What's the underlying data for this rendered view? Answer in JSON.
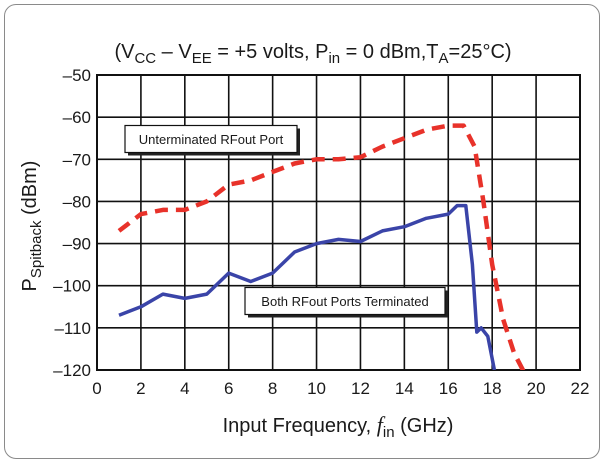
{
  "chart_data": {
    "type": "line",
    "title_parts": [
      {
        "t": "(V",
        "s": "n"
      },
      {
        "t": "CC",
        "s": "sub"
      },
      {
        "t": " – V",
        "s": "n"
      },
      {
        "t": "EE",
        "s": "sub"
      },
      {
        "t": " = +5 volts, P",
        "s": "n"
      },
      {
        "t": "in",
        "s": "sub"
      },
      {
        "t": " = 0 dBm,T",
        "s": "n"
      },
      {
        "t": "A",
        "s": "sub"
      },
      {
        "t": "=25°C)",
        "s": "n"
      }
    ],
    "xlabel_parts": [
      {
        "t": "Input Frequency, ",
        "s": "n"
      },
      {
        "t": "f",
        "s": "it"
      },
      {
        "t": "in",
        "s": "sub"
      },
      {
        "t": " (GHz)",
        "s": "n"
      }
    ],
    "ylabel_parts": [
      {
        "t": "P",
        "s": "n"
      },
      {
        "t": "Spitback",
        "s": "sub"
      },
      {
        "t": " (dBm)",
        "s": "n"
      }
    ],
    "xlim": [
      0,
      22
    ],
    "ylim": [
      -120,
      -50
    ],
    "xticks": [
      0,
      2,
      4,
      6,
      8,
      10,
      12,
      14,
      16,
      18,
      20,
      22
    ],
    "xtick_labels": [
      "0",
      "2",
      "4",
      "6",
      "8",
      "10",
      "12",
      "14",
      "16",
      "18",
      "20",
      "22"
    ],
    "yticks": [
      -50,
      -60,
      -70,
      -80,
      -90,
      -100,
      -110,
      -120
    ],
    "ytick_labels": [
      "–50",
      "–60",
      "–70",
      "–80",
      "–90",
      "–100",
      "–110",
      "–120"
    ],
    "grid": true,
    "series": [
      {
        "name": "Unterminated RFout Port",
        "color": "#e8322a",
        "dash": true,
        "x": [
          1,
          2,
          3,
          4,
          5,
          6,
          7,
          8,
          9,
          10,
          11,
          12,
          13,
          14,
          15,
          16,
          16.7,
          17.2,
          17.6,
          18,
          18.5,
          19,
          19.5
        ],
        "y": [
          -87,
          -83,
          -82,
          -82,
          -80,
          -76,
          -75,
          -73,
          -71,
          -70,
          -70,
          -69.5,
          -67,
          -65,
          -63,
          -62,
          -62,
          -67,
          -80,
          -95,
          -108,
          -116,
          -121
        ]
      },
      {
        "name": "Both RFout Ports Terminated",
        "color": "#3a44a8",
        "dash": false,
        "x": [
          1,
          2,
          3,
          4,
          5,
          6,
          7,
          8,
          9,
          10,
          11,
          12,
          13,
          14,
          15,
          16,
          16.4,
          16.8,
          17.1,
          17.3,
          17.5,
          17.8,
          18.1
        ],
        "y": [
          -107,
          -105,
          -102,
          -103,
          -102,
          -97,
          -99,
          -97,
          -92,
          -90,
          -89,
          -89.5,
          -87,
          -86,
          -84,
          -83,
          -81,
          -81,
          -95,
          -111,
          -110,
          -112,
          -120
        ]
      }
    ],
    "annotations": [
      {
        "text": "Unterminated RFout Port",
        "series": 0
      },
      {
        "text": "Both RFout Ports Terminated",
        "series": 1
      }
    ]
  }
}
